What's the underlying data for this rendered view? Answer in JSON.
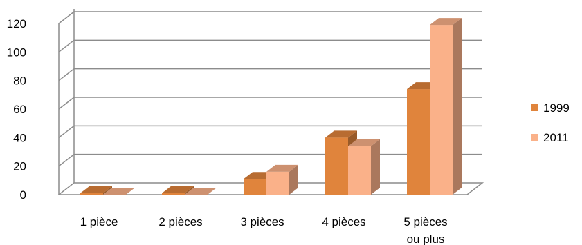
{
  "chart_data": {
    "type": "bar",
    "categories": [
      "1 pièce",
      "2 pièces",
      "3 pièces",
      "4 pièces",
      "5 pièces ou plus"
    ],
    "category_lines": [
      [
        "1 pièce"
      ],
      [
        "2 pièces"
      ],
      [
        "3 pièces"
      ],
      [
        "4 pièces"
      ],
      [
        "5 pièces",
        "ou plus"
      ]
    ],
    "series": [
      {
        "name": "1999",
        "values": [
          1,
          1,
          11,
          40,
          74
        ],
        "color": "#E0843C"
      },
      {
        "name": "2011",
        "values": [
          0,
          0,
          16,
          34,
          119
        ],
        "color": "#FAB189"
      }
    ],
    "ylim": [
      0,
      120
    ],
    "yticks": [
      0,
      20,
      40,
      60,
      80,
      100,
      120
    ],
    "grid": true,
    "legend_position": "right",
    "style": "3d-clustered-column"
  }
}
